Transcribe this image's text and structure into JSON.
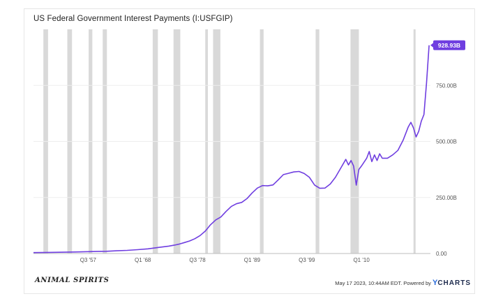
{
  "footer": {
    "logo_text": "ANIMAL SPIRITS",
    "timestamp": "May 17 2023, 10:44AM EDT.",
    "powered_by": "Powered by",
    "brand_mark": "Y",
    "brand_name": "CHARTS"
  },
  "chart_data": {
    "type": "line",
    "title": "US Federal Government Interest Payments (I:USFGIP)",
    "xlabel": "",
    "ylabel": "",
    "x_tick_labels": [
      "Q3 '57",
      "Q1 '68",
      "Q3 '78",
      "Q1 '89",
      "Q3 '99",
      "Q1 '10"
    ],
    "x_tick_values": [
      1957.5,
      1968.0,
      1978.5,
      1989.0,
      1999.5,
      2010.0
    ],
    "y_tick_labels": [
      "0.00",
      "250.00B",
      "500.00B",
      "750.00B"
    ],
    "y_tick_values": [
      0,
      250,
      500,
      750
    ],
    "ylim": [
      0,
      1000
    ],
    "xlim": [
      1947,
      2023.25
    ],
    "grid": true,
    "last_value_label": "928.93B",
    "colors": {
      "line": "#6f3ee0",
      "badge": "#6f3ee0",
      "recession": "#d9d9d9"
    },
    "recessions": [
      [
        1948.9,
        1949.8
      ],
      [
        1953.5,
        1954.4
      ],
      [
        1957.6,
        1958.3
      ],
      [
        1960.3,
        1961.1
      ],
      [
        1969.9,
        1970.9
      ],
      [
        1973.9,
        1975.2
      ],
      [
        1980.0,
        1980.5
      ],
      [
        1981.5,
        1982.9
      ],
      [
        1990.5,
        1991.2
      ],
      [
        2001.2,
        2001.9
      ],
      [
        2007.9,
        2009.5
      ],
      [
        2020.0,
        2020.4
      ]
    ],
    "series": [
      {
        "points": [
          [
            1947,
            4
          ],
          [
            1950,
            5
          ],
          [
            1953,
            6
          ],
          [
            1955,
            7
          ],
          [
            1957,
            8
          ],
          [
            1959,
            9
          ],
          [
            1961,
            10
          ],
          [
            1963,
            12
          ],
          [
            1965,
            14
          ],
          [
            1967,
            17
          ],
          [
            1969,
            21
          ],
          [
            1971,
            27
          ],
          [
            1973,
            33
          ],
          [
            1974,
            37
          ],
          [
            1975,
            42
          ],
          [
            1976,
            49
          ],
          [
            1977,
            56
          ],
          [
            1978,
            66
          ],
          [
            1979,
            80
          ],
          [
            1980,
            100
          ],
          [
            1981,
            128
          ],
          [
            1982,
            150
          ],
          [
            1983,
            163
          ],
          [
            1984,
            188
          ],
          [
            1985,
            210
          ],
          [
            1986,
            222
          ],
          [
            1987,
            228
          ],
          [
            1988,
            245
          ],
          [
            1989,
            270
          ],
          [
            1990,
            292
          ],
          [
            1991,
            303
          ],
          [
            1992,
            302
          ],
          [
            1993,
            306
          ],
          [
            1994,
            328
          ],
          [
            1995,
            352
          ],
          [
            1996,
            358
          ],
          [
            1997,
            364
          ],
          [
            1998,
            366
          ],
          [
            1999,
            357
          ],
          [
            2000,
            340
          ],
          [
            2001,
            305
          ],
          [
            2002,
            291
          ],
          [
            2003,
            292
          ],
          [
            2004,
            310
          ],
          [
            2005,
            340
          ],
          [
            2006,
            380
          ],
          [
            2007,
            420
          ],
          [
            2007.5,
            395
          ],
          [
            2008,
            415
          ],
          [
            2008.5,
            390
          ],
          [
            2009,
            305
          ],
          [
            2009.5,
            375
          ],
          [
            2010,
            390
          ],
          [
            2011,
            425
          ],
          [
            2011.5,
            455
          ],
          [
            2012,
            410
          ],
          [
            2012.5,
            440
          ],
          [
            2013,
            415
          ],
          [
            2013.5,
            445
          ],
          [
            2014,
            425
          ],
          [
            2015,
            425
          ],
          [
            2016,
            440
          ],
          [
            2017,
            460
          ],
          [
            2018,
            505
          ],
          [
            2019,
            565
          ],
          [
            2019.5,
            585
          ],
          [
            2020,
            560
          ],
          [
            2020.5,
            520
          ],
          [
            2021,
            545
          ],
          [
            2021.5,
            590
          ],
          [
            2022,
            620
          ],
          [
            2022.5,
            760
          ],
          [
            2023,
            929
          ]
        ]
      }
    ]
  }
}
